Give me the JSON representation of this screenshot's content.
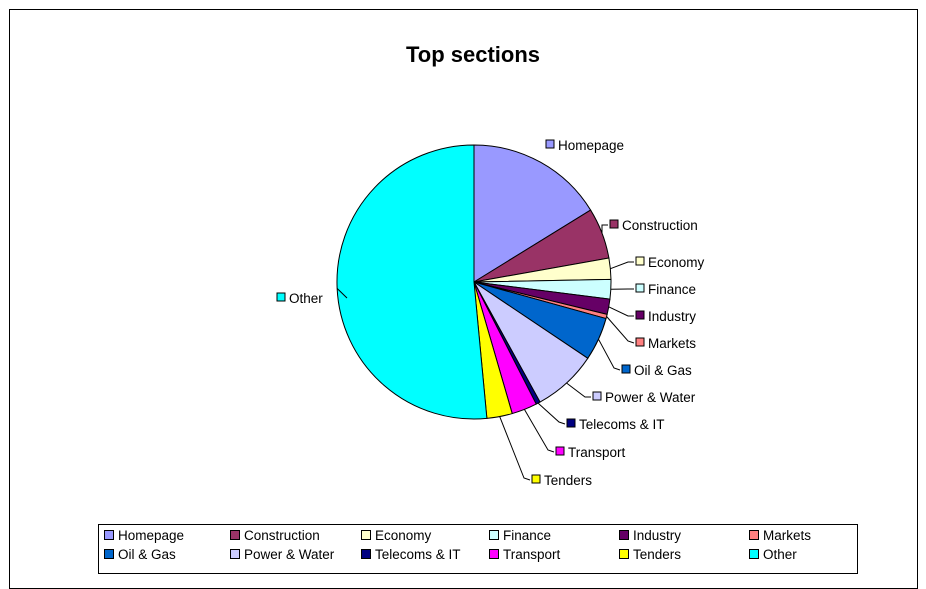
{
  "chart_data": {
    "type": "pie",
    "title": "Top sections",
    "start": "12 o'clock, clockwise",
    "legend_position": "bottom",
    "slices": [
      {
        "label": "Homepage",
        "value": 16.2,
        "color": "#9999FF"
      },
      {
        "label": "Construction",
        "value": 6.0,
        "color": "#993366"
      },
      {
        "label": "Economy",
        "value": 2.5,
        "color": "#FFFFCC"
      },
      {
        "label": "Finance",
        "value": 2.3,
        "color": "#CCFFFF"
      },
      {
        "label": "Industry",
        "value": 1.8,
        "color": "#660066"
      },
      {
        "label": "Markets",
        "value": 0.5,
        "color": "#FF8080"
      },
      {
        "label": "Oil & Gas",
        "value": 5.1,
        "color": "#0066CC"
      },
      {
        "label": "Power & Water",
        "value": 7.6,
        "color": "#CCCCFF"
      },
      {
        "label": "Telecoms & IT",
        "value": 0.5,
        "color": "#000080"
      },
      {
        "label": "Transport",
        "value": 3.0,
        "color": "#FF00FF"
      },
      {
        "label": "Tenders",
        "value": 3.0,
        "color": "#FFFF00"
      },
      {
        "label": "Other",
        "value": 51.5,
        "color": "#00FFFF"
      }
    ]
  }
}
